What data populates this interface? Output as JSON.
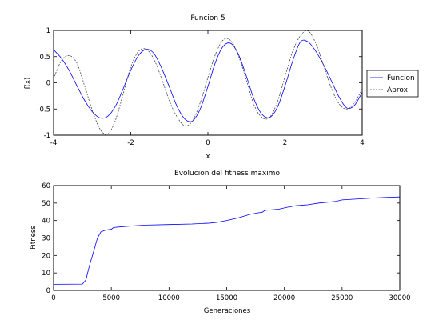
{
  "chart_data": [
    {
      "type": "line",
      "title": "Funcion 5",
      "xlabel": "x",
      "ylabel": "f(x)",
      "xlim": [
        -4,
        4
      ],
      "ylim": [
        -1,
        1
      ],
      "xticks": [
        -4,
        -2,
        0,
        2,
        4
      ],
      "yticks": [
        -1,
        -0.5,
        0,
        0.5,
        1
      ],
      "xtick_labels": [
        "-4",
        "-2",
        "0",
        "2",
        "4"
      ],
      "ytick_labels": [
        "-1",
        "-0.5",
        "0",
        "0.5",
        "1"
      ],
      "grid": false,
      "legend": "outside-right",
      "series": [
        {
          "name": "Funcion",
          "color": "#0000ff",
          "style": "solid",
          "x": [
            -4.0,
            -3.8,
            -3.6,
            -3.4,
            -3.2,
            -3.0,
            -2.8,
            -2.6,
            -2.4,
            -2.2,
            -2.0,
            -1.8,
            -1.6,
            -1.4,
            -1.2,
            -1.0,
            -0.8,
            -0.6,
            -0.4,
            -0.2,
            0.0,
            0.2,
            0.4,
            0.6,
            0.8,
            1.0,
            1.2,
            1.4,
            1.6,
            1.8,
            2.0,
            2.2,
            2.4,
            2.6,
            2.8,
            3.0,
            3.2,
            3.4,
            3.6,
            3.8,
            4.0
          ],
          "y": [
            0.63,
            0.47,
            0.24,
            -0.05,
            -0.33,
            -0.55,
            -0.67,
            -0.64,
            -0.45,
            -0.12,
            0.24,
            0.52,
            0.64,
            0.56,
            0.28,
            -0.08,
            -0.45,
            -0.69,
            -0.73,
            -0.5,
            -0.07,
            0.4,
            0.7,
            0.75,
            0.53,
            0.12,
            -0.32,
            -0.6,
            -0.66,
            -0.47,
            -0.06,
            0.42,
            0.78,
            0.78,
            0.6,
            0.34,
            0.04,
            -0.27,
            -0.48,
            -0.43,
            -0.18
          ]
        },
        {
          "name": "Aprox",
          "color": "#4a4a4a",
          "style": "dashed",
          "x": [
            -4.0,
            -3.8,
            -3.6,
            -3.4,
            -3.2,
            -3.0,
            -2.8,
            -2.6,
            -2.4,
            -2.2,
            -2.0,
            -1.8,
            -1.6,
            -1.4,
            -1.2,
            -1.0,
            -0.8,
            -0.6,
            -0.4,
            -0.2,
            0.0,
            0.2,
            0.4,
            0.6,
            0.8,
            1.0,
            1.2,
            1.4,
            1.6,
            1.8,
            2.0,
            2.2,
            2.4,
            2.6,
            2.8,
            3.0,
            3.2,
            3.4,
            3.6,
            3.8,
            4.0
          ],
          "y": [
            0.08,
            0.42,
            0.52,
            0.38,
            -0.05,
            -0.52,
            -0.88,
            -0.98,
            -0.72,
            -0.22,
            0.3,
            0.6,
            0.64,
            0.45,
            0.08,
            -0.34,
            -0.65,
            -0.82,
            -0.73,
            -0.38,
            0.1,
            0.55,
            0.82,
            0.8,
            0.5,
            0.04,
            -0.43,
            -0.66,
            -0.66,
            -0.37,
            0.12,
            0.6,
            0.9,
            0.99,
            0.75,
            0.33,
            -0.1,
            -0.4,
            -0.5,
            -0.38,
            -0.12
          ]
        }
      ]
    },
    {
      "type": "line",
      "title": "Evolucion del fitness maximo",
      "xlabel": "Generaciones",
      "ylabel": "Fitness",
      "xlim": [
        0,
        30000
      ],
      "ylim": [
        0,
        60
      ],
      "xticks": [
        0,
        5000,
        10000,
        15000,
        20000,
        25000,
        30000
      ],
      "yticks": [
        0,
        10,
        20,
        30,
        40,
        50,
        60
      ],
      "xtick_labels": [
        "0",
        "5000",
        "10000",
        "15000",
        "20000",
        "25000",
        "30000"
      ],
      "ytick_labels": [
        "0",
        "10",
        "20",
        "30",
        "40",
        "50",
        "60"
      ],
      "grid": false,
      "legend": "none",
      "series": [
        {
          "color": "#0000ff",
          "style": "solid",
          "x": [
            0,
            2500,
            2800,
            3100,
            3500,
            3800,
            4100,
            4500,
            5000,
            5200,
            6000,
            7000,
            8000,
            10000,
            12000,
            13500,
            14200,
            15000,
            16000,
            17000,
            17800,
            18100,
            18300,
            19500,
            20200,
            21000,
            22000,
            23000,
            23800,
            24500,
            25000,
            26000,
            27000,
            28000,
            29000,
            30000
          ],
          "y": [
            3.5,
            3.6,
            6.0,
            14.0,
            23.0,
            30.0,
            33.5,
            34.5,
            35.0,
            36.0,
            36.5,
            37.0,
            37.4,
            37.7,
            38.0,
            38.5,
            39.0,
            40.0,
            41.5,
            43.5,
            44.5,
            44.8,
            45.8,
            46.5,
            47.5,
            48.5,
            49.0,
            50.0,
            50.5,
            51.0,
            51.8,
            52.2,
            52.6,
            53.0,
            53.3,
            53.5
          ]
        }
      ]
    }
  ]
}
